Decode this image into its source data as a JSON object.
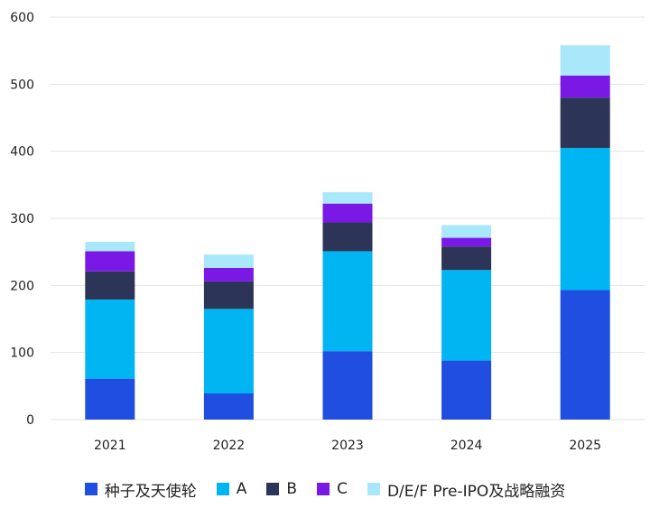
{
  "chart_data": {
    "type": "bar",
    "stacked": true,
    "title": "",
    "xlabel": "",
    "ylabel": "",
    "ylim": [
      0,
      600
    ],
    "yticks": [
      0,
      100,
      200,
      300,
      400,
      500,
      600
    ],
    "grid": true,
    "legend_position": "bottom",
    "categories": [
      "2021",
      "2022",
      "2023",
      "2024",
      "2025"
    ],
    "series": [
      {
        "name": "种子及天使轮",
        "color": "#1f4ee0",
        "values": [
          61,
          39,
          102,
          88,
          193
        ]
      },
      {
        "name": "A",
        "color": "#00b5f1",
        "values": [
          118,
          126,
          149,
          135,
          212
        ]
      },
      {
        "name": "B",
        "color": "#2c3457",
        "values": [
          42,
          41,
          43,
          35,
          75
        ]
      },
      {
        "name": "C",
        "color": "#7a19e6",
        "values": [
          30,
          20,
          28,
          13,
          33
        ]
      },
      {
        "name": "D/E/F Pre-IPO及战略融资",
        "color": "#a9e8fa",
        "values": [
          14,
          20,
          17,
          19,
          45
        ]
      }
    ]
  }
}
